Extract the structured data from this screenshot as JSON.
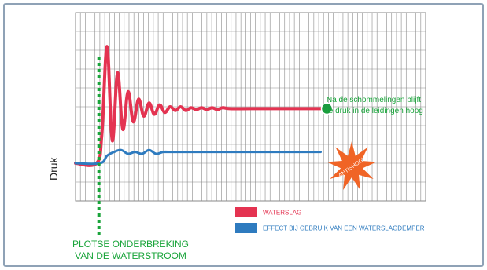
{
  "chart_data": {
    "type": "line",
    "title": "",
    "xlabel": "",
    "ylabel": "Druk",
    "grid": true,
    "series": [
      {
        "name": "WATERSLAG",
        "color": "#e43351",
        "x": [
          0,
          6,
          7.5,
          9,
          10.5,
          12,
          13.5,
          15,
          16.5,
          18,
          19.5,
          21,
          22.5,
          24,
          25.5,
          27,
          28.5,
          30,
          31.5,
          33,
          34.5,
          36,
          37.5,
          39,
          40.5,
          42,
          44,
          50,
          60,
          70
        ],
        "y": [
          20,
          20,
          35,
          82,
          32,
          68,
          38,
          58,
          42,
          54,
          45,
          52,
          46,
          51,
          47,
          50,
          48,
          50,
          48,
          49.5,
          48.5,
          49.5,
          48.5,
          49.5,
          48.5,
          49.5,
          49,
          49,
          49,
          49
        ]
      },
      {
        "name": "EFFECT BIJ GEBRUIK VAN EEN WATERSLAGDEMPER",
        "color": "#2e7bbf",
        "x": [
          0,
          7,
          9,
          11,
          13,
          15,
          17,
          19,
          21,
          23,
          25,
          27,
          29,
          70
        ],
        "y": [
          20,
          20,
          24,
          26,
          27,
          25,
          26,
          25,
          27,
          25,
          26,
          26,
          26,
          26
        ]
      }
    ],
    "annotations": {
      "pressure_note_line1": "Na de schommelingen blijft",
      "pressure_note_line2": "de druk in de leidingen hoog",
      "badge_text": "ANTISHOCK",
      "event_label_line1": "PLOTSE ONDERBREKING",
      "event_label_line2": "VAN DE WATERSTROOM"
    },
    "colors": {
      "frame": "#8fa2b6",
      "grid": "#8a8a8a",
      "event_line": "#19a43a",
      "marker": "#1a9a3f",
      "badge": "#f06426"
    }
  }
}
